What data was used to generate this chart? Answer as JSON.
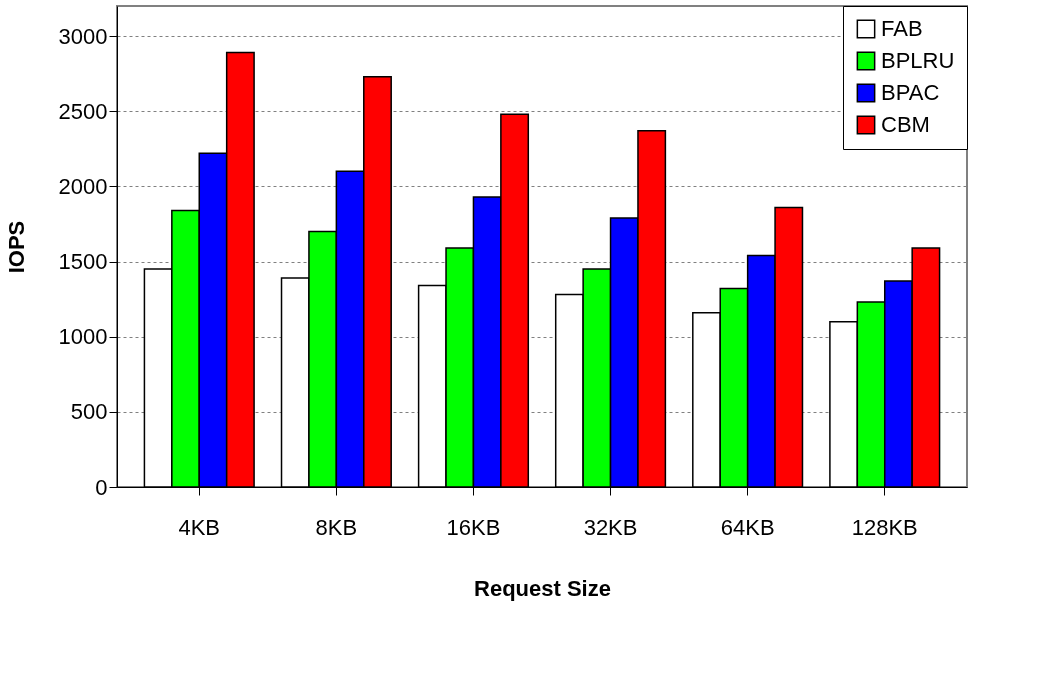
{
  "chart_data": {
    "type": "bar",
    "xlabel": "Request Size",
    "ylabel": "IOPS",
    "categories": [
      "4KB",
      "8KB",
      "16KB",
      "32KB",
      "64KB",
      "128KB"
    ],
    "series": [
      {
        "name": "FAB",
        "color": "#ffffff",
        "values": [
          1450,
          1390,
          1340,
          1280,
          1160,
          1100
        ]
      },
      {
        "name": "BPLRU",
        "color": "#00ff00",
        "values": [
          1840,
          1700,
          1590,
          1450,
          1320,
          1230
        ]
      },
      {
        "name": "BPAC",
        "color": "#0000ff",
        "values": [
          2220,
          2100,
          1930,
          1790,
          1540,
          1370
        ]
      },
      {
        "name": "CBM",
        "color": "#ff0000",
        "values": [
          2890,
          2730,
          2480,
          2370,
          1860,
          1590
        ]
      }
    ],
    "ylim": [
      0,
      3200
    ],
    "yticks": [
      0,
      500,
      1000,
      1500,
      2000,
      2500,
      3000
    ],
    "grid": "y",
    "legend": "top right"
  }
}
